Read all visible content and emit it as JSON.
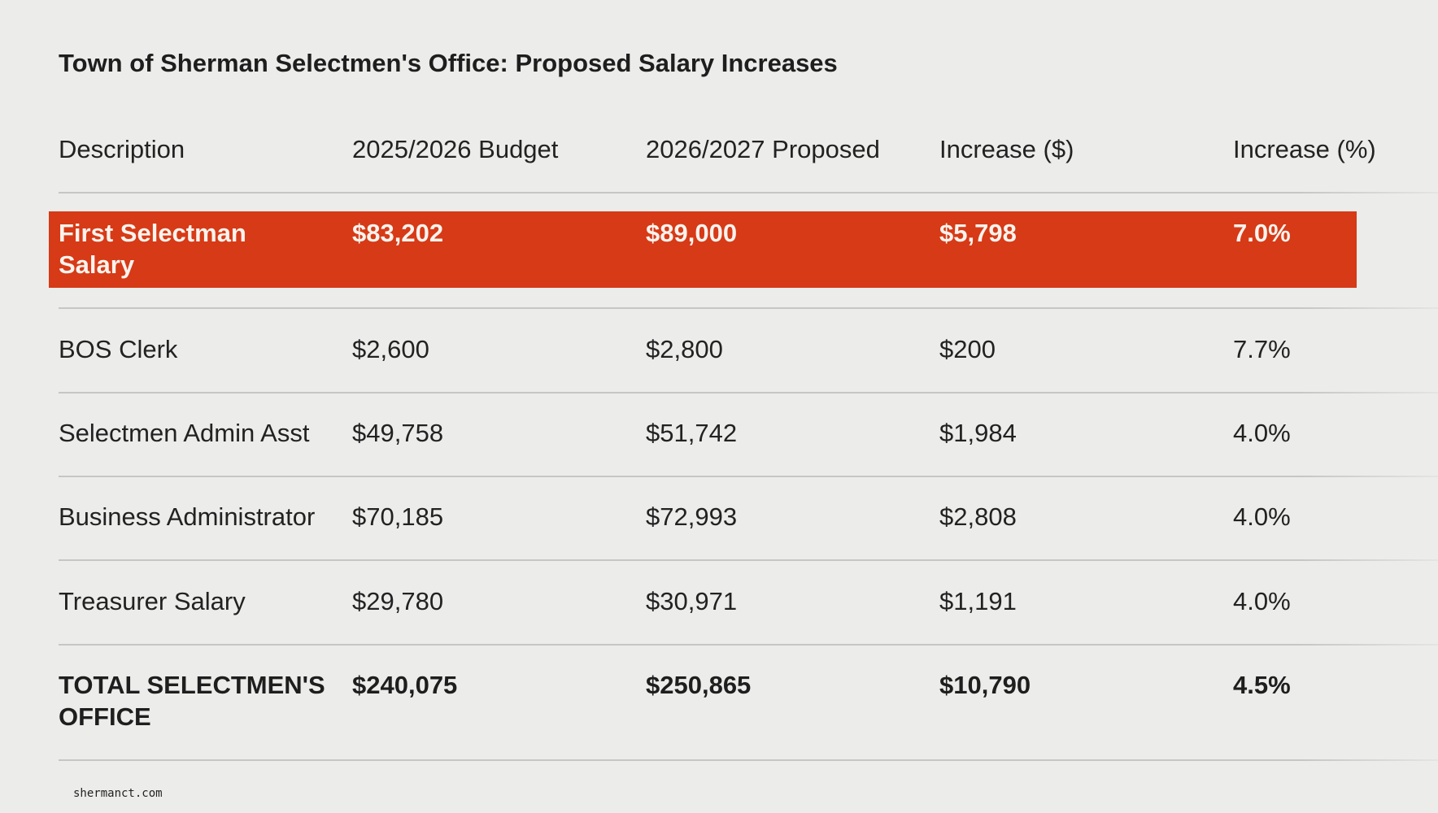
{
  "title": "Town of Sherman Selectmen's Office: Proposed Salary Increases",
  "columns": [
    "Description",
    "2025/2026 Budget",
    "2026/2027 Proposed",
    "Increase ($)",
    "Increase (%)"
  ],
  "rows": [
    {
      "description": "First Selectman Salary",
      "budget": "$83,202",
      "proposed": "$89,000",
      "increase": "$5,798",
      "percent": "7.0%"
    },
    {
      "description": "BOS Clerk",
      "budget": "$2,600",
      "proposed": "$2,800",
      "increase": "$200",
      "percent": "7.7%"
    },
    {
      "description": "Selectmen Admin Asst",
      "budget": "$49,758",
      "proposed": "$51,742",
      "increase": "$1,984",
      "percent": "4.0%"
    },
    {
      "description": "Business Administrator",
      "budget": "$70,185",
      "proposed": "$72,993",
      "increase": "$2,808",
      "percent": "4.0%"
    },
    {
      "description": "Treasurer Salary",
      "budget": "$29,780",
      "proposed": "$30,971",
      "increase": "$1,191",
      "percent": "4.0%"
    },
    {
      "description": "TOTAL SELECTMEN'S OFFICE",
      "budget": "$240,075",
      "proposed": "$250,865",
      "increase": "$10,790",
      "percent": "4.5%"
    }
  ],
  "highlight_color": "#d63a16",
  "footer": "shermanct.com"
}
